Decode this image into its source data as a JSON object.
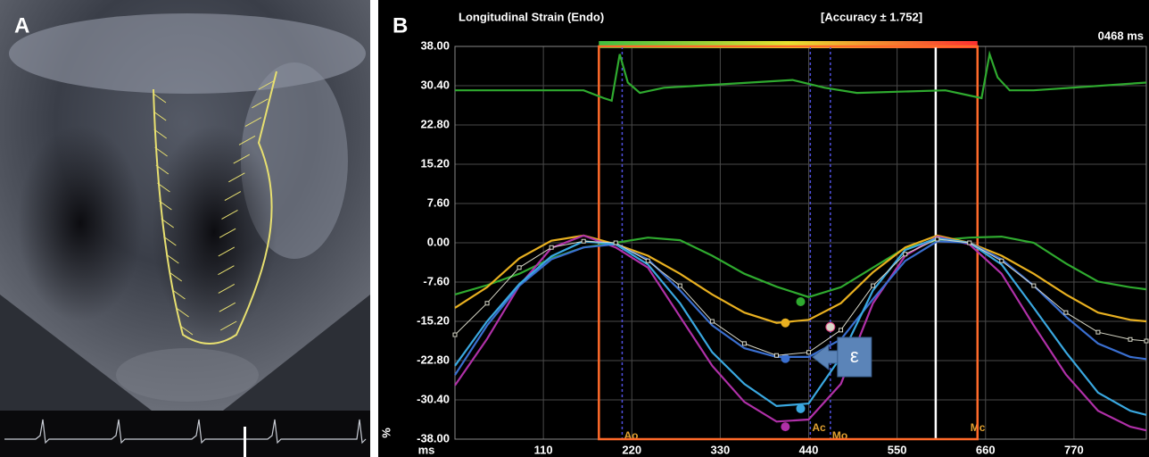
{
  "panel_a": {
    "label": "A"
  },
  "chart_data": {
    "type": "line",
    "panel_label": "B",
    "title": "Longitudinal Strain (Endo)",
    "subtitle": "[Accuracy ± 1.752]",
    "time_label": "0468 ms",
    "x_label": "ms",
    "y_label": "%",
    "xlim": [
      0,
      860
    ],
    "ylim": [
      -38,
      38
    ],
    "xticks": [
      110,
      220,
      330,
      440,
      550,
      660,
      770
    ],
    "yticks": [
      {
        "value": 38,
        "label": "38.00"
      },
      {
        "value": 30.4,
        "label": "30.40"
      },
      {
        "value": 22.8,
        "label": "22.80"
      },
      {
        "value": 15.2,
        "label": "15.20"
      },
      {
        "value": 7.6,
        "label": "7.60"
      },
      {
        "value": 0,
        "label": "0.00"
      },
      {
        "value": -7.6,
        "label": "-7.60"
      },
      {
        "value": -15.2,
        "label": "-15.20"
      },
      {
        "value": -22.8,
        "label": "-22.80"
      },
      {
        "value": -30.4,
        "label": "-30.40"
      },
      {
        "value": -38,
        "label": "-38.00"
      }
    ],
    "grid": true,
    "x": [
      0,
      40,
      80,
      120,
      160,
      200,
      240,
      280,
      320,
      360,
      400,
      440,
      480,
      520,
      560,
      600,
      640,
      680,
      720,
      760,
      800,
      840,
      860
    ],
    "series": [
      {
        "color": "#2faa2f",
        "values": [
          -10,
          -8.2,
          -6,
          -3,
          -0.9,
          0,
          1,
          0.5,
          -2.5,
          -6,
          -8.5,
          -10.5,
          -8.6,
          -4.8,
          -1,
          0.5,
          1,
          1.2,
          0,
          -4,
          -7.5,
          -8.6,
          -9
        ],
        "peak": {
          "x": 430,
          "value": -11.4
        }
      },
      {
        "color": "#e8b020",
        "values": [
          -12.6,
          -8.6,
          -3,
          0.4,
          1.4,
          -0.3,
          -2.5,
          -6,
          -10,
          -13.5,
          -15.5,
          -14.9,
          -11.7,
          -5.7,
          -0.9,
          1.4,
          0,
          -2.5,
          -6,
          -10,
          -13.5,
          -14.9,
          -15.2
        ],
        "peak": {
          "x": 411,
          "value": -15.5
        }
      },
      {
        "color": "#b030a8",
        "values": [
          -27.6,
          -18.6,
          -8.3,
          -1,
          1.4,
          -0.9,
          -4.8,
          -14.3,
          -23.8,
          -30.8,
          -34.6,
          -34.2,
          -27.3,
          -11.7,
          -2.5,
          1.2,
          -0.3,
          -6,
          -16,
          -25.5,
          -32.5,
          -35.6,
          -36.3
        ],
        "peak": {
          "x": 411,
          "value": -35.6
        }
      },
      {
        "color": "#3a6fd0",
        "values": [
          -25.6,
          -16,
          -8.3,
          -3.2,
          -0.9,
          -0.3,
          -3.2,
          -9.2,
          -16,
          -20.4,
          -22.1,
          -22.1,
          -18.7,
          -10.9,
          -3.5,
          0.3,
          0,
          -3.2,
          -8.3,
          -14.3,
          -19.5,
          -22.1,
          -22.5
        ],
        "peak": {
          "x": 411,
          "value": -22.4
        }
      },
      {
        "color": "#3aa8e0",
        "values": [
          -23.8,
          -15.2,
          -8,
          -2.6,
          0.3,
          -0.3,
          -4.2,
          -11.7,
          -21.2,
          -27.3,
          -31.6,
          -31.1,
          -22.1,
          -9.2,
          -1.4,
          0.9,
          0,
          -4.2,
          -12.6,
          -21.2,
          -29,
          -32.5,
          -33.3
        ],
        "peak": {
          "x": 430,
          "value": -32.1
        }
      },
      {
        "color": "#d8d8c8",
        "values": [
          -17.8,
          -11.7,
          -4.8,
          -0.9,
          0.3,
          0,
          -3.5,
          -8.3,
          -15.2,
          -19.5,
          -21.8,
          -21.2,
          -16.9,
          -8.3,
          -2.2,
          0.7,
          0,
          -3.5,
          -8.3,
          -13.5,
          -17.3,
          -18.7,
          -19
        ],
        "peak": {
          "x": 467,
          "value": -16.3
        }
      },
      {
        "color": "#2faa2f",
        "x": [
          0,
          160,
          185,
          195,
          205,
          215,
          230,
          260,
          420,
          460,
          500,
          610,
          640,
          655,
          665,
          675,
          690,
          720,
          860
        ],
        "values": [
          29.5,
          29.5,
          28,
          27.5,
          36.5,
          31,
          29,
          30,
          31.5,
          30,
          29,
          29.5,
          28.5,
          28,
          36.5,
          32,
          29.5,
          29.5,
          31
        ]
      }
    ],
    "frame": {
      "x": [
        179,
        650
      ],
      "color": "#ff6a2a"
    },
    "colorbar": [
      "#3fbf3f",
      "#e8e030",
      "#ff3030"
    ],
    "cursor": 598,
    "events": [
      {
        "label": "Ao",
        "x": 208,
        "dashed": true
      },
      {
        "label": "Ac",
        "x": 442,
        "dashed": true
      },
      {
        "label": "Mo",
        "x": 467,
        "dashed": true
      },
      {
        "label": "Mc",
        "x": 650,
        "dashed": false
      }
    ],
    "annotation": "ε"
  }
}
